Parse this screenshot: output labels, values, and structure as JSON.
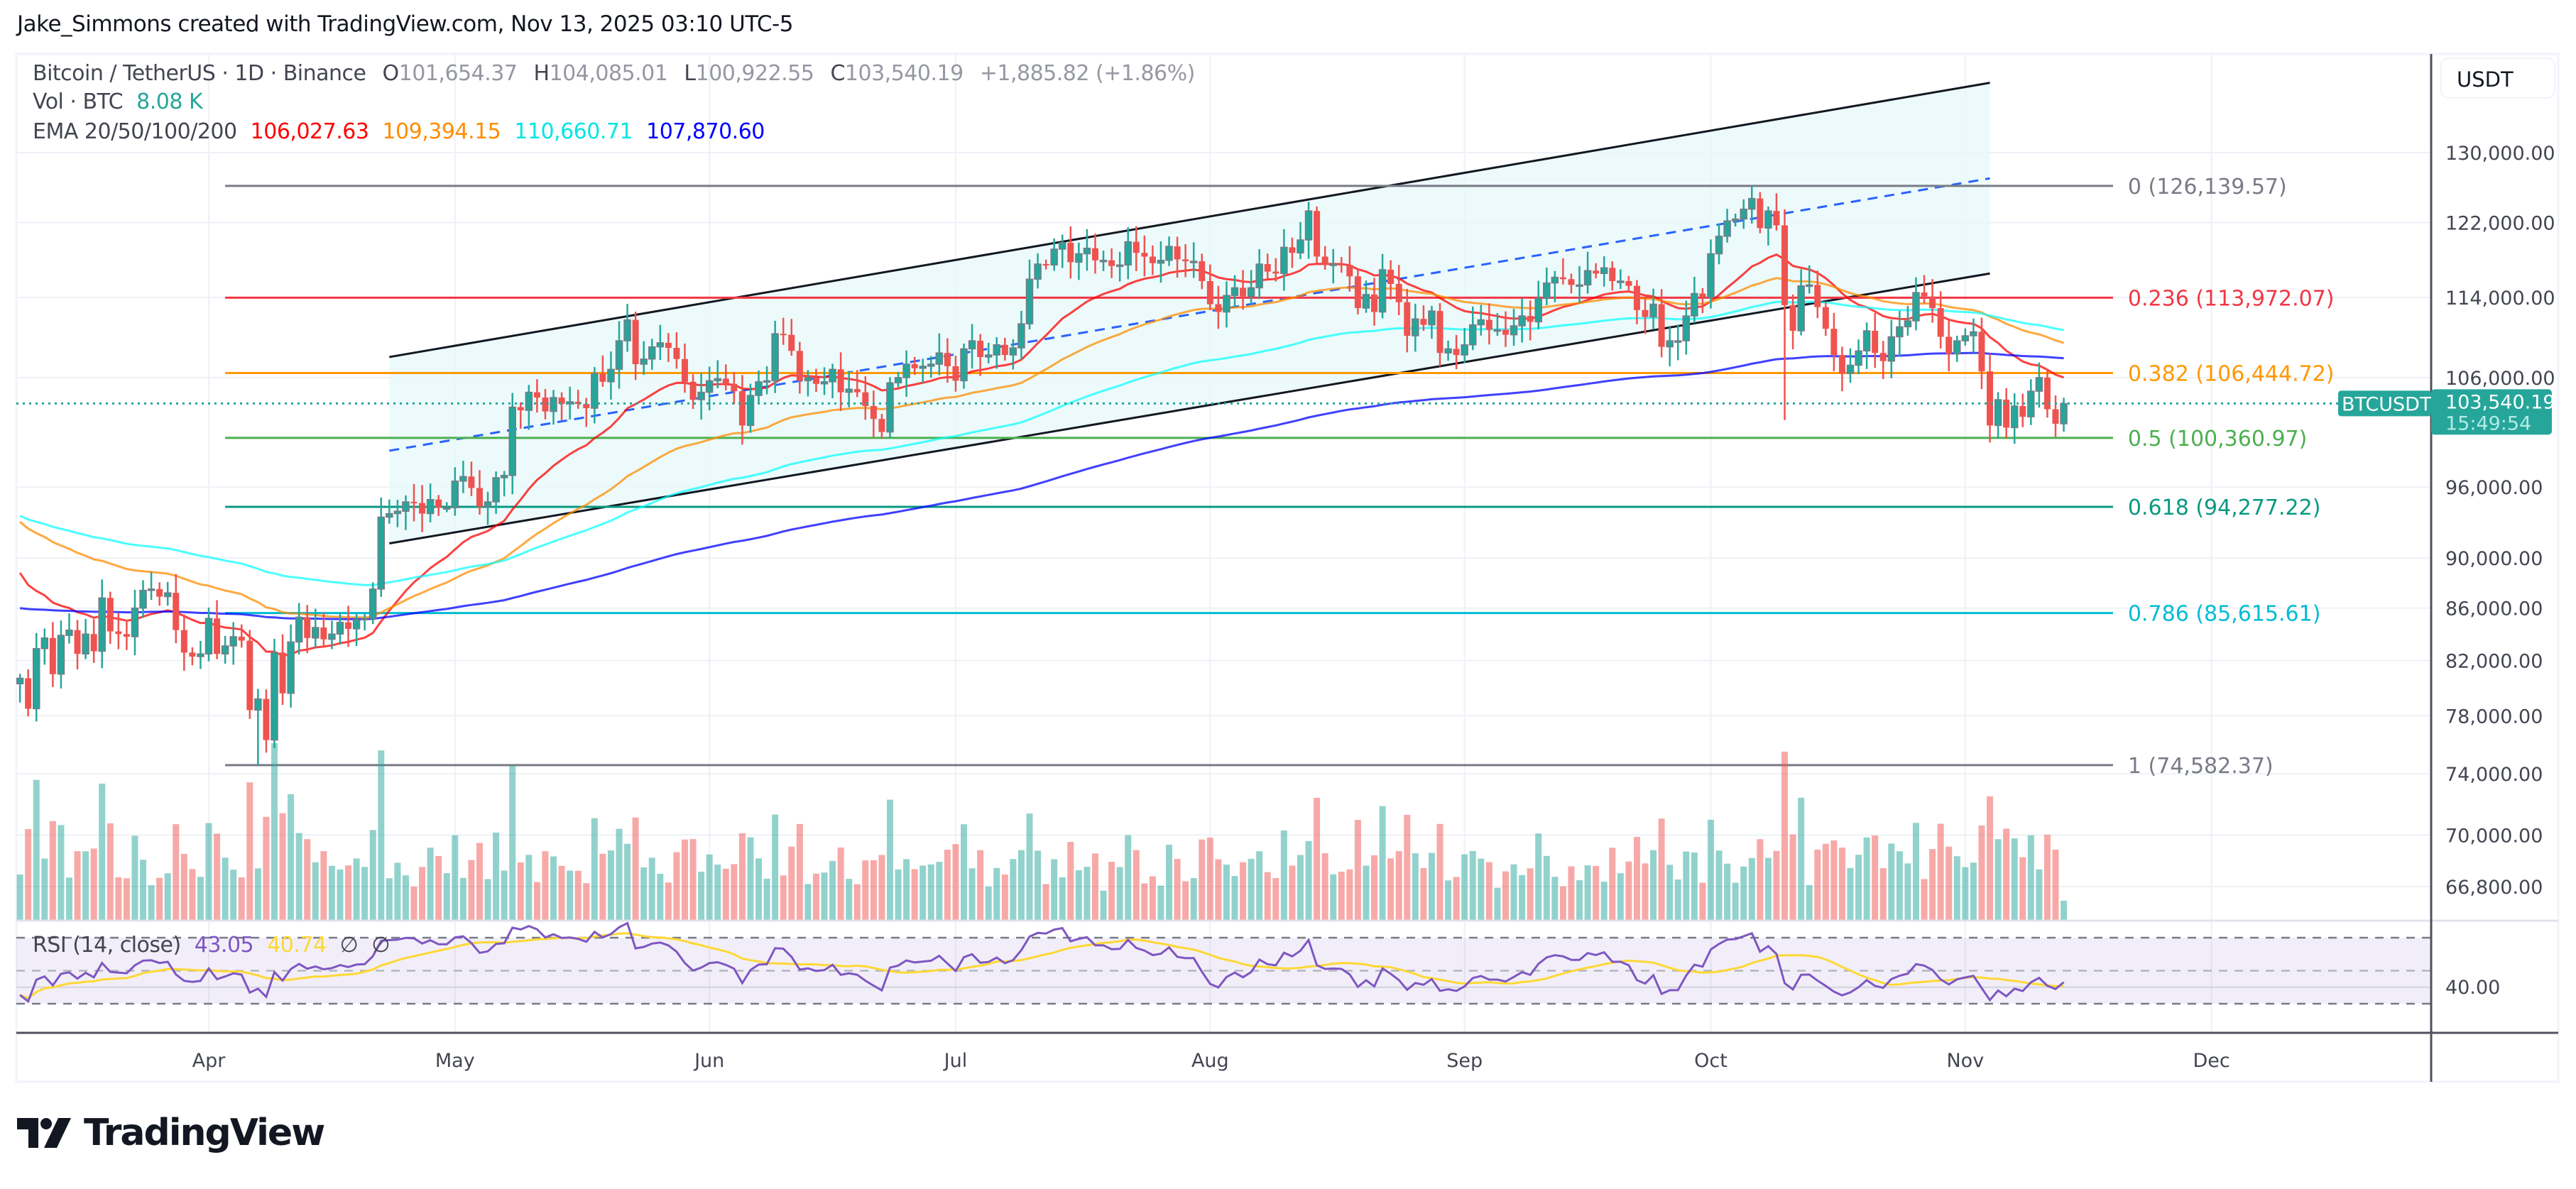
{
  "header": {
    "title": "Jake_Simmons created with TradingView.com, Nov 13, 2025 03:10 UTC-5"
  },
  "legend": {
    "symbol": "Bitcoin / TetherUS · 1D · Binance",
    "o_label": "O",
    "o": "101,654.37",
    "h_label": "H",
    "h": "104,085.01",
    "l_label": "L",
    "l": "100,922.55",
    "c_label": "C",
    "c": "103,540.19",
    "change": "+1,885.82 (+1.86%)",
    "vol_label": "Vol · BTC",
    "vol": "8.08 K",
    "ema_label": "EMA 20/50/100/200",
    "ema20": "106,027.63",
    "ema50": "109,394.15",
    "ema100": "110,660.71",
    "ema200": "107,870.60",
    "rsi_label": "RSI (14, close)",
    "rsi": "43.05",
    "rsi_ma": "40.74",
    "rsi_div1": "∅",
    "rsi_div2": "∅"
  },
  "axis": {
    "currency": "USDT",
    "symbol_badge": "BTCUSDT",
    "last_price": "103,540.19",
    "countdown": "15:49:54",
    "rsi_tick": "40.00"
  },
  "logo": {
    "text": "TradingView"
  },
  "colors": {
    "up": "#26a69a",
    "down": "#ef5350",
    "ema20": "#ff0000",
    "ema50": "#ff8c00",
    "ema100": "#00ffff",
    "ema200": "#0000ff",
    "rsi": "#7e57c2",
    "rsi_ma": "#fdd835",
    "channel_fill": "#e6f8fa"
  },
  "chart_data": {
    "type": "candlestick",
    "scale": "log",
    "ylim": [
      64000,
      142000
    ],
    "grid": true,
    "y_ticks": [
      "130,000.00",
      "122,000.00",
      "114,000.00",
      "106,000.00",
      "96,000.00",
      "90,000.00",
      "86,000.00",
      "82,000.00",
      "78,000.00",
      "74,000.00",
      "70,000.00",
      "66,800.00"
    ],
    "y_tick_values": [
      130000,
      122000,
      114000,
      106000,
      96000,
      90000,
      86000,
      82000,
      78000,
      74000,
      70000,
      66800
    ],
    "x_ticks": [
      {
        "label": "Apr",
        "date": "2025-04-01"
      },
      {
        "label": "May",
        "date": "2025-05-01"
      },
      {
        "label": "Jun",
        "date": "2025-06-01"
      },
      {
        "label": "Jul",
        "date": "2025-07-01"
      },
      {
        "label": "Aug",
        "date": "2025-08-01"
      },
      {
        "label": "Sep",
        "date": "2025-09-01"
      },
      {
        "label": "Oct",
        "date": "2025-10-01"
      },
      {
        "label": "Nov",
        "date": "2025-11-01"
      },
      {
        "label": "Dec",
        "date": "2025-12-01"
      }
    ],
    "daily_close": {
      "2025-03-09": [
        80700,
        78500,
        82900,
        83700,
        81000,
        83900,
        84300,
        82500,
        84000,
        82700,
        86800,
        84200,
        84000,
        83800,
        86000,
        87400,
        87500,
        86900,
        87200,
        84300,
        82600,
        82300,
        82500
      ],
      "2025-04-01": [
        85200,
        82500,
        83100,
        83800,
        83500,
        78400,
        79200,
        76300,
        82600,
        79600,
        83400,
        85300,
        83700,
        84500,
        83600,
        84000,
        84900,
        84400,
        85100,
        85200,
        87500,
        93400,
        93700,
        93900,
        94700,
        94600,
        93700,
        94900,
        94200,
        94200
      ],
      "2025-05-01": [
        96500,
        96900,
        95900,
        94300,
        94700,
        96800,
        97000,
        103200,
        102900,
        104600,
        104100,
        102800,
        104100,
        103500,
        103700,
        103500,
        103100,
        106400,
        105600,
        106800,
        109600,
        111700,
        107300,
        107800,
        109000,
        109400,
        108900,
        107800,
        105600,
        103900,
        104600
      ],
      "2025-06-01": [
        105700,
        105900,
        105400,
        104700,
        101500,
        104300,
        105600,
        105700,
        110300,
        110200,
        108600,
        105700,
        106000,
        105400,
        105600,
        106800,
        104600,
        104900,
        104600,
        103300,
        102100,
        100900,
        105500,
        106000,
        107300,
        106900,
        107100,
        107300,
        108400,
        107100
      ],
      "2025-07-01": [
        105700,
        108800,
        109600,
        108000,
        108200,
        109200,
        108200,
        108900,
        111300,
        115900,
        117500,
        117400,
        119100,
        119800,
        117700,
        118600,
        119200,
        117900,
        117900,
        117300,
        117400,
        119900,
        118700,
        118300,
        117600,
        117900,
        119400,
        118000,
        117800,
        117800,
        115700
      ],
      "2025-08-01": [
        113300,
        112500,
        114200,
        115000,
        114100,
        115000,
        117500,
        116700,
        116500,
        119300,
        118700,
        120100,
        123300,
        118300,
        117400,
        117500,
        117400,
        116200,
        112900,
        114300,
        112500,
        116900,
        115400,
        113500,
        110100,
        111800,
        111200,
        112600,
        108400,
        108800,
        108200
      ],
      "2025-09-01": [
        109200,
        111200,
        111700,
        110700,
        110700,
        110200,
        111100,
        112100,
        111500,
        113900,
        115500,
        116100,
        115900,
        115300,
        115300,
        116800,
        116500,
        117100,
        115700,
        115700,
        115200,
        112700,
        112000,
        113300,
        109000,
        109600,
        109600,
        112100,
        114400,
        114000
      ],
      "2025-10-01": [
        118600,
        120500,
        122200,
        122400,
        123500,
        124700,
        121400,
        123300,
        121700,
        113200,
        110600,
        115200,
        115300,
        113000,
        110800,
        108200,
        106400,
        107200,
        108600,
        110600,
        108400,
        107600,
        110000,
        111000,
        111600,
        114500,
        114100,
        112900,
        110000,
        108300,
        109600
      ],
      "2025-11-01": [
        110100,
        110500,
        106600,
        101500,
        103900,
        101300,
        103300,
        102300,
        104700,
        106000,
        103000,
        101654.37,
        103540.19
      ]
    },
    "wick_extremes": [
      {
        "date": "2025-04-07",
        "low": 74582.37
      },
      {
        "date": "2025-10-06",
        "high": 126139.57
      },
      {
        "date": "2025-10-10",
        "low": 102000
      },
      {
        "date": "2025-11-13",
        "high": 104085.01,
        "low": 100922.55,
        "open": 101654.37
      }
    ],
    "indicators": {
      "ema_periods": [
        20,
        50,
        100,
        200
      ],
      "rsi": {
        "period": 14,
        "upper": 70,
        "middle": 50,
        "lower": 30,
        "ma_period": 14
      }
    },
    "volume_last": 8080,
    "fibonacci": {
      "start_date": "2025-04-03",
      "end_date": "2025-11-19",
      "levels": [
        {
          "ratio": "0",
          "value": 126139.57,
          "label": "0 (126,139.57)",
          "color": "#787b86"
        },
        {
          "ratio": "0.236",
          "value": 113972.07,
          "label": "0.236 (113,972.07)",
          "color": "#f23645"
        },
        {
          "ratio": "0.382",
          "value": 106444.72,
          "label": "0.382 (106,444.72)",
          "color": "#ff9800"
        },
        {
          "ratio": "0.5",
          "value": 100360.97,
          "label": "0.5 (100,360.97)",
          "color": "#4caf50"
        },
        {
          "ratio": "0.618",
          "value": 94277.22,
          "label": "0.618 (94,277.22)",
          "color": "#089981"
        },
        {
          "ratio": "0.786",
          "value": 85615.61,
          "label": "0.786 (85,615.61)",
          "color": "#00bcd4"
        },
        {
          "ratio": "1",
          "value": 74582.37,
          "label": "1 (74,582.37)",
          "color": "#787b86"
        }
      ]
    },
    "channel": {
      "start_date": "2025-04-23",
      "end_date": "2025-11-04",
      "upper": [
        108000,
        138500
      ],
      "middle": [
        99200,
        127000
      ],
      "lower": [
        91200,
        116500
      ]
    }
  }
}
